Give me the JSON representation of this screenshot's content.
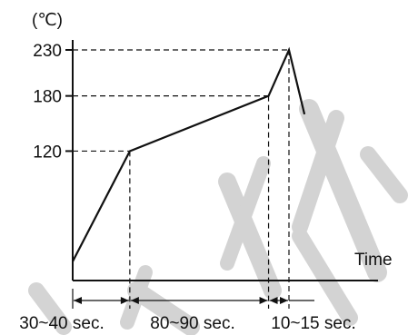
{
  "colors": {
    "line": "#111111",
    "watermark": "#cfcfcf"
  },
  "chart_data": {
    "type": "line",
    "title": "",
    "xlabel": "Time",
    "ylabel": "(℃)",
    "yticks": [
      120,
      180,
      230
    ],
    "ylim": [
      0,
      240
    ],
    "xlim": [
      0,
      165
    ],
    "grid": false,
    "series": [
      {
        "x": [
          0,
          35,
          120,
          132.5,
          142
        ],
        "y": [
          0,
          120,
          180,
          230,
          160
        ]
      }
    ],
    "reference_x": [
      35,
      120,
      132.5
    ],
    "durations": [
      {
        "from": 0,
        "to": 35,
        "label": "30~40 sec."
      },
      {
        "from": 35,
        "to": 120,
        "label": "80~90 sec."
      },
      {
        "from": 120,
        "to": 132.5,
        "label": "10~15 sec."
      }
    ]
  }
}
